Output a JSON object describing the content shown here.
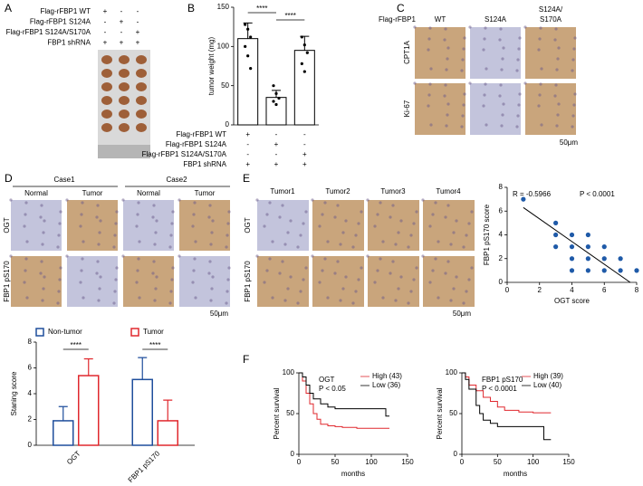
{
  "panels": [
    "A",
    "B",
    "C",
    "D",
    "E",
    "F"
  ],
  "panel_a": {
    "rows": [
      "Flag-rFBP1 WT",
      "Flag-rFBP1 S124A",
      "Flag-rFBP1 S124A/S170A",
      "FBP1 shRNA"
    ],
    "signs": [
      [
        "+",
        "-",
        "-"
      ],
      [
        "-",
        "+",
        "-"
      ],
      [
        "-",
        "-",
        "+"
      ],
      [
        "+",
        "+",
        "+"
      ]
    ]
  },
  "panel_c": {
    "heading": "Flag-rFBP1",
    "columns": [
      [
        "WT"
      ],
      [
        "S124A"
      ],
      [
        "S124A/",
        "S170A"
      ]
    ],
    "rows": [
      "CPT1A",
      "Ki-67"
    ],
    "scale": "50μm"
  },
  "panel_d": {
    "groups": [
      "Case1",
      "Case2"
    ],
    "columns": [
      "Normal",
      "Tumor",
      "Normal",
      "Tumor"
    ],
    "rows": [
      "OGT",
      "FBP1 pS170"
    ],
    "scale": "50μm"
  },
  "panel_e": {
    "columns": [
      "Tumor1",
      "Tumor2",
      "Tumor3",
      "Tumor4"
    ],
    "rows": [
      "OGT",
      "FBP1 pS170"
    ],
    "scale": "50μm"
  },
  "chart_data": [
    {
      "type": "bar",
      "y_label": "tumor weight (mg)",
      "values": [
        110,
        35,
        95
      ],
      "errors": [
        20,
        9,
        18
      ],
      "points": [
        [
          128,
          122,
          112,
          100,
          88,
          72
        ],
        [
          50,
          40,
          34,
          30,
          26
        ],
        [
          112,
          102,
          92,
          78,
          68
        ]
      ],
      "color": "#000000",
      "ylim": [
        0,
        150
      ],
      "yticks": [
        0,
        50,
        100,
        150
      ],
      "significance": [
        "****",
        "****"
      ],
      "conditions": {
        "rows": [
          "Flag-rFBP1 WT",
          "Flag-rFBP1 S124A",
          "Flag-rFBP1 S124A/S170A",
          "FBP1 shRNA"
        ],
        "signs": [
          [
            "+",
            "-",
            "-"
          ],
          [
            "-",
            "+",
            "-"
          ],
          [
            "-",
            "-",
            "+"
          ],
          [
            "+",
            "+",
            "+"
          ]
        ]
      }
    },
    {
      "type": "grouped_bar",
      "y_label": "Staning score",
      "categories": [
        "OGT",
        "FBP1 pS170"
      ],
      "series": [
        {
          "name": "Non-tumor",
          "color": "#1f4e9c",
          "values": [
            1.9,
            5.1
          ],
          "errors": [
            1.1,
            1.7
          ]
        },
        {
          "name": "Tumor",
          "color": "#e0282e",
          "values": [
            5.4,
            1.9
          ],
          "errors": [
            1.3,
            1.6
          ]
        }
      ],
      "ylim": [
        0,
        8
      ],
      "yticks": [
        0,
        2,
        4,
        6,
        8
      ],
      "significance": [
        "****",
        "****"
      ]
    },
    {
      "type": "scatter",
      "x_label": "OGT score",
      "y_label": "FBP1 pS170 score",
      "annotations": [
        "R = -0.5966",
        "P < 0.0001"
      ],
      "x": [
        1,
        3,
        3,
        3,
        4,
        4,
        4,
        4,
        5,
        5,
        5,
        5,
        6,
        6,
        6,
        7,
        7,
        8
      ],
      "y": [
        7,
        5,
        4,
        3,
        4,
        3,
        2,
        1,
        4,
        3,
        2,
        1,
        3,
        2,
        1,
        2,
        1,
        1
      ],
      "color": "#1f5aa8",
      "fit": {
        "x": [
          1,
          7.6
        ],
        "y": [
          6.3,
          0
        ]
      },
      "xlim": [
        0,
        8
      ],
      "xticks": [
        0,
        2,
        4,
        6,
        8
      ],
      "ylim": [
        0,
        8
      ],
      "yticks": [
        0,
        2,
        4,
        6,
        8
      ]
    },
    {
      "type": "survival",
      "annotations": [
        "OGT",
        "P < 0.05"
      ],
      "x_label": "months",
      "y_label": "Percent survival",
      "series": [
        {
          "name": "High (43)",
          "color": "#e0282e",
          "x": [
            0,
            5,
            10,
            15,
            20,
            25,
            30,
            40,
            50,
            60,
            80,
            100,
            125
          ],
          "values": [
            100,
            90,
            75,
            62,
            50,
            43,
            37,
            35,
            34,
            33,
            32,
            32,
            32
          ]
        },
        {
          "name": "Low (36)",
          "color": "#000000",
          "x": [
            0,
            5,
            10,
            15,
            20,
            30,
            40,
            50,
            60,
            90,
            120,
            125
          ],
          "values": [
            100,
            95,
            85,
            75,
            68,
            62,
            58,
            56,
            56,
            56,
            47,
            47
          ]
        }
      ],
      "xlim": [
        0,
        150
      ],
      "xticks": [
        0,
        50,
        100,
        150
      ],
      "ylim": [
        0,
        100
      ],
      "yticks": [
        0,
        50,
        100
      ]
    },
    {
      "type": "survival",
      "annotations": [
        "FBP1 pS170",
        "P < 0.0001"
      ],
      "x_label": "months",
      "y_label": "Percent survival",
      "series": [
        {
          "name": "High (39)",
          "color": "#e0282e",
          "x": [
            0,
            5,
            10,
            20,
            30,
            40,
            50,
            60,
            80,
            100,
            125
          ],
          "values": [
            100,
            95,
            85,
            78,
            70,
            65,
            58,
            54,
            52,
            51,
            51
          ]
        },
        {
          "name": "Low (40)",
          "color": "#000000",
          "x": [
            0,
            5,
            10,
            20,
            25,
            30,
            40,
            50,
            80,
            110,
            115,
            125
          ],
          "values": [
            100,
            92,
            80,
            60,
            50,
            42,
            38,
            34,
            34,
            34,
            18,
            18
          ]
        }
      ],
      "xlim": [
        0,
        150
      ],
      "xticks": [
        0,
        50,
        100,
        150
      ],
      "ylim": [
        0,
        100
      ],
      "yticks": [
        0,
        50,
        100
      ]
    }
  ]
}
